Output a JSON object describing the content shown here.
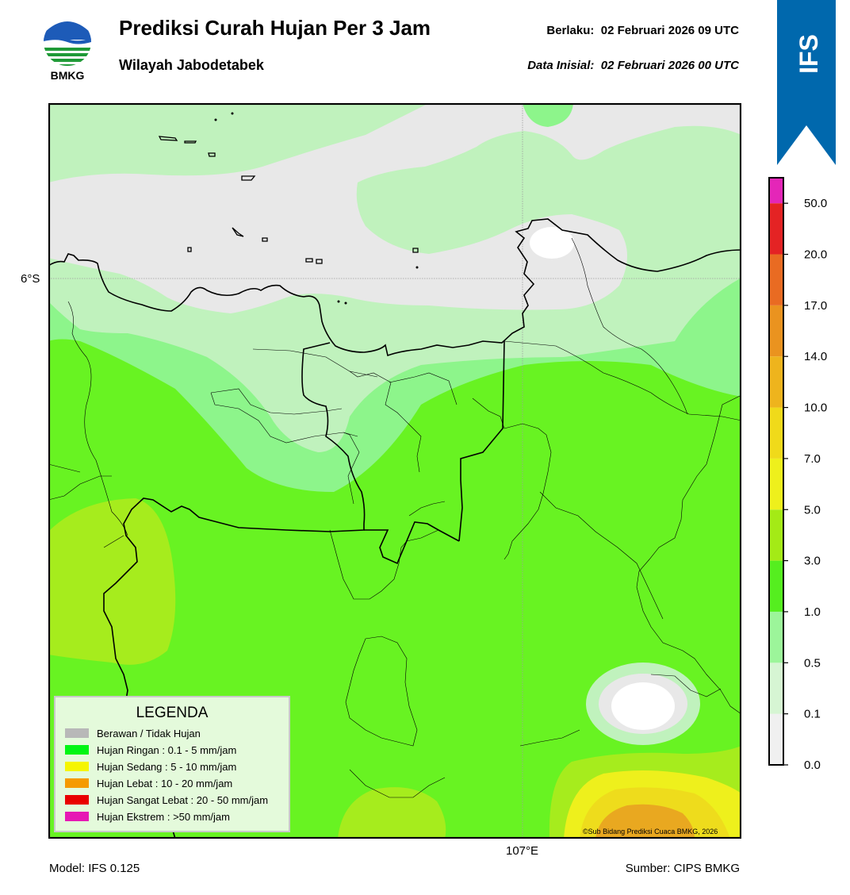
{
  "header": {
    "logo_text": "BMKG",
    "title": "Prediksi Curah Hujan Per 3 Jam",
    "subtitle": "Wilayah Jabodetabek",
    "valid_label": "Berlaku:",
    "valid_time": "02 Februari 2026 09 UTC",
    "init_label": "Data Inisial:",
    "init_time": "02 Februari 2026 00 UTC"
  },
  "ribbon": {
    "text": "IFS",
    "color": "#0068ad"
  },
  "map": {
    "lat_label": "6°S",
    "lon_label": "107°E",
    "credit": "©Sub Bidang Prediksi Cuaca BMKG, 2026",
    "colors": {
      "no_rain": "#e8e8e8",
      "light_01": "#c0f2bd",
      "light_05": "#8df58b",
      "light_1": "#68f322",
      "rain_3": "#a6ec1d",
      "rain_5": "#eef01c",
      "rain_7": "#eedc1c",
      "rain_10": "#e9a820",
      "white": "#ffffff"
    }
  },
  "legend": {
    "title": "LEGENDA",
    "items": [
      {
        "label": "Berawan / Tidak Hujan",
        "color": "#b8b8b8"
      },
      {
        "label": "Hujan Ringan : 0.1 - 5 mm/jam",
        "color": "#00f514"
      },
      {
        "label": "Hujan Sedang : 5 - 10 mm/jam",
        "color": "#f5f500"
      },
      {
        "label": "Hujan Lebat : 10 - 20 mm/jam",
        "color": "#f59a00"
      },
      {
        "label": "Hujan Sangat Lebat : 20 - 50 mm/jam",
        "color": "#e90000"
      },
      {
        "label": "Hujan Ekstrem : >50 mm/jam",
        "color": "#e619b4"
      }
    ]
  },
  "colorbar": {
    "ticks": [
      "0.0",
      "0.1",
      "0.5",
      "1.0",
      "3.0",
      "5.0",
      "7.0",
      "10.0",
      "14.0",
      "17.0",
      "20.0",
      "50.0"
    ],
    "colors": [
      "#f0f0f0",
      "#d6f5d3",
      "#9cf59a",
      "#55ee1f",
      "#a4ea16",
      "#eef01c",
      "#f0da1a",
      "#eeb41d",
      "#ea931f",
      "#e96b22",
      "#e42324",
      "#e426b8"
    ]
  },
  "footer": {
    "model": "Model: IFS 0.125",
    "source": "Sumber: CIPS BMKG"
  }
}
